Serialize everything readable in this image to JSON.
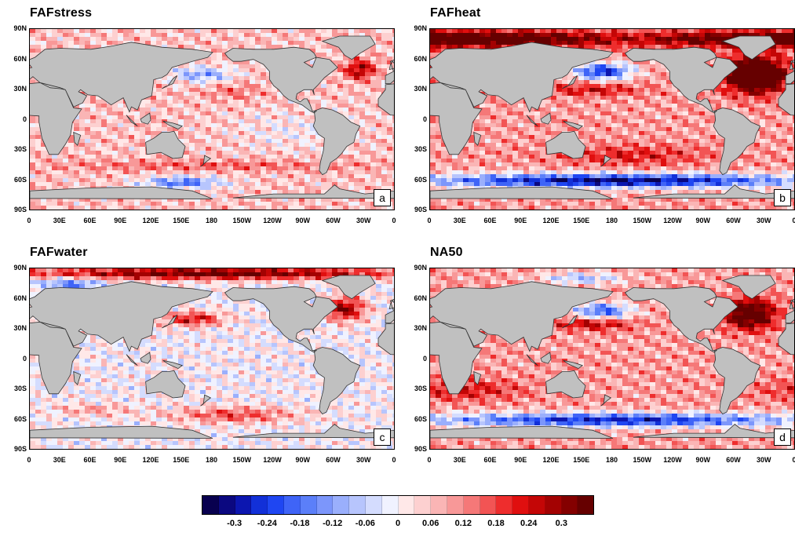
{
  "panels": [
    {
      "title": "FAFstress",
      "letter": "a",
      "pattern": "stress"
    },
    {
      "title": "FAFheat",
      "letter": "b",
      "pattern": "heat"
    },
    {
      "title": "FAFwater",
      "letter": "c",
      "pattern": "water"
    },
    {
      "title": "NA50",
      "letter": "d",
      "pattern": "na50"
    }
  ],
  "lat_labels": [
    "90N",
    "60N",
    "30N",
    "0",
    "30S",
    "60S",
    "90S"
  ],
  "lon_labels": [
    "0",
    "30E",
    "60E",
    "90E",
    "120E",
    "150E",
    "180",
    "150W",
    "120W",
    "90W",
    "60W",
    "30W",
    "0"
  ],
  "colorbar": {
    "labels": [
      "-0.3",
      "-0.24",
      "-0.18",
      "-0.12",
      "-0.06",
      "0",
      "0.06",
      "0.12",
      "0.18",
      "0.24",
      "0.3"
    ],
    "colors": [
      "#08004f",
      "#0b0880",
      "#0c16b0",
      "#1230d8",
      "#1f46f2",
      "#3f64f7",
      "#5b7ff9",
      "#7c96fb",
      "#9aaffc",
      "#b7c5fd",
      "#d4dcfe",
      "#f0f2ff",
      "#ffe8e8",
      "#fdd0d0",
      "#fab5b5",
      "#f89898",
      "#f57878",
      "#f25454",
      "#ee2d2d",
      "#e00f0f",
      "#c40606",
      "#a30202",
      "#840000",
      "#660000"
    ]
  },
  "land_color": "#c0c0c0",
  "coast_color": "#333333"
}
